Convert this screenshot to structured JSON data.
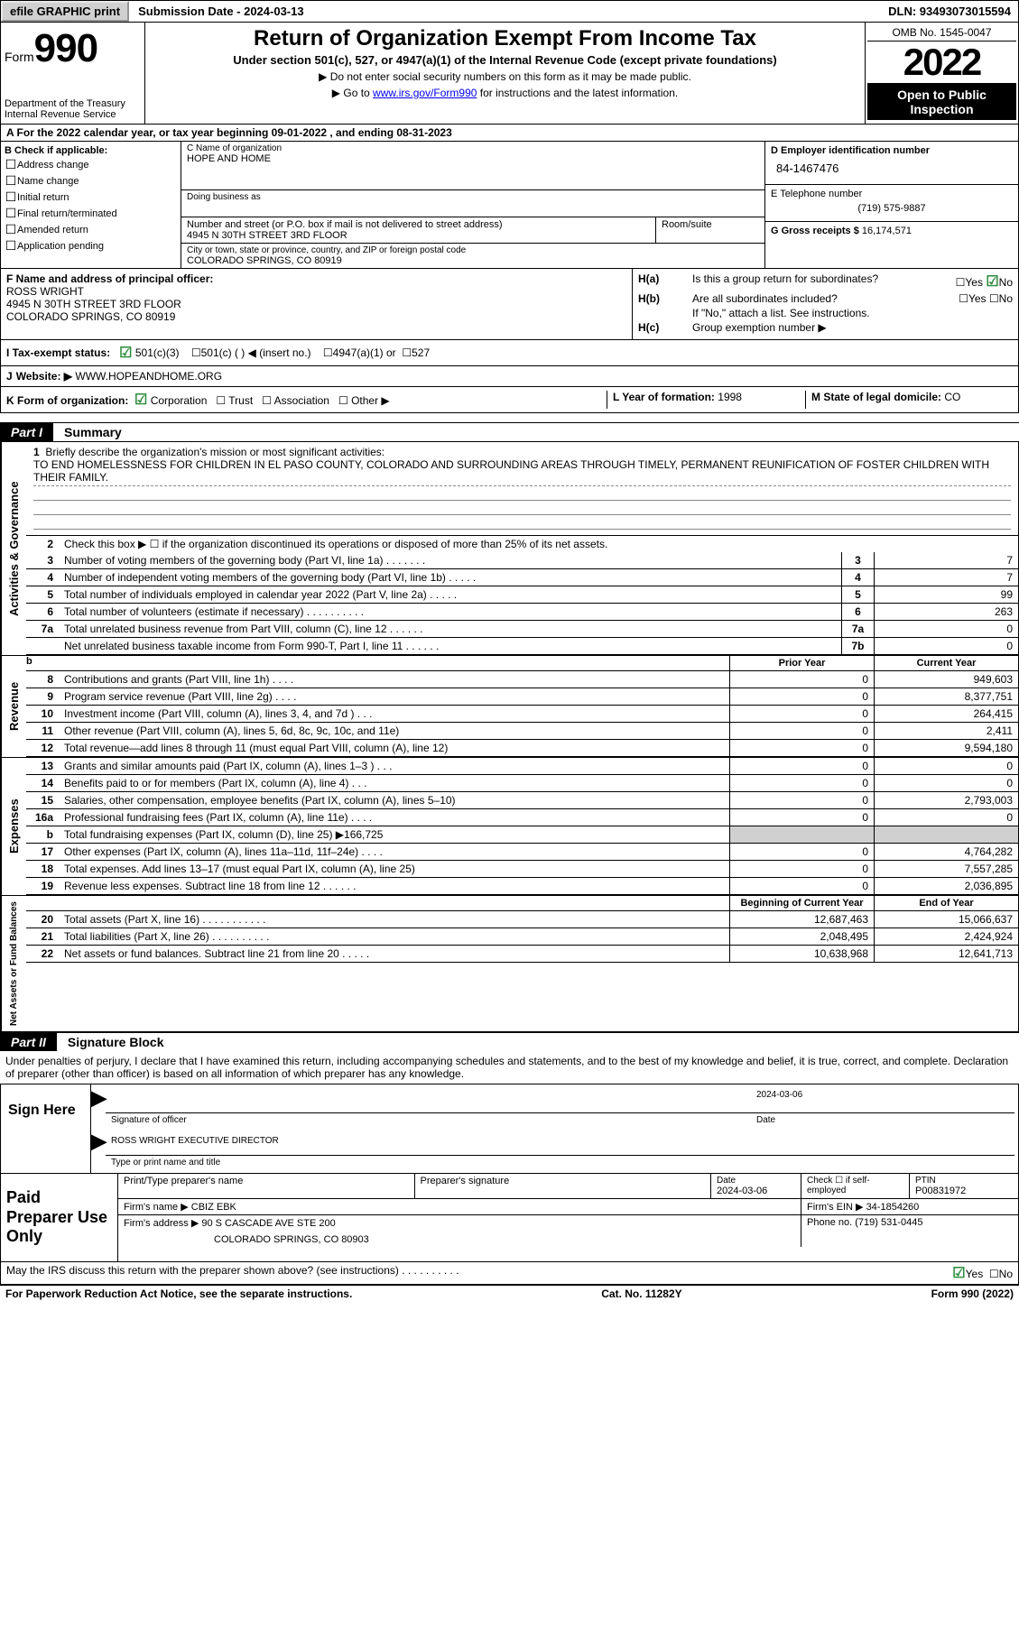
{
  "topbar": {
    "efile": "efile GRAPHIC print",
    "submission": "Submission Date - 2024-03-13",
    "dln": "DLN: 93493073015594"
  },
  "header": {
    "form_word": "Form",
    "form_num": "990",
    "dept": "Department of the Treasury",
    "irs": "Internal Revenue Service",
    "title": "Return of Organization Exempt From Income Tax",
    "subtitle": "Under section 501(c), 527, or 4947(a)(1) of the Internal Revenue Code (except private foundations)",
    "note1": "▶ Do not enter social security numbers on this form as it may be made public.",
    "note2_pre": "▶ Go to ",
    "note2_link": "www.irs.gov/Form990",
    "note2_post": " for instructions and the latest information.",
    "omb": "OMB No. 1545-0047",
    "year": "2022",
    "open": "Open to Public Inspection"
  },
  "period": {
    "text": "A For the 2022 calendar year, or tax year beginning 09-01-2022    , and ending 08-31-2023"
  },
  "colB": {
    "head": "B Check if applicable:",
    "items": [
      "Address change",
      "Name change",
      "Initial return",
      "Final return/terminated",
      "Amended return",
      "Application pending"
    ]
  },
  "colC": {
    "name_lab": "C Name of organization",
    "name": "HOPE AND HOME",
    "dba_lab": "Doing business as",
    "street_lab": "Number and street (or P.O. box if mail is not delivered to street address)",
    "street": "4945 N 30TH STREET 3RD FLOOR",
    "room_lab": "Room/suite",
    "city_lab": "City or town, state or province, country, and ZIP or foreign postal code",
    "city": "COLORADO SPRINGS, CO  80919"
  },
  "colD": {
    "ein_lab": "D Employer identification number",
    "ein": "84-1467476",
    "tel_lab": "E Telephone number",
    "tel": "(719) 575-9887",
    "gross_lab": "G Gross receipts $",
    "gross": "16,174,571"
  },
  "sectionF": {
    "lab": "F Name and address of principal officer:",
    "name": "ROSS WRIGHT",
    "addr1": "4945 N 30TH STREET 3RD FLOOR",
    "addr2": "COLORADO SPRINGS, CO  80919"
  },
  "sectionH": {
    "ha": "Is this a group return for subordinates?",
    "hb": "Are all subordinates included?",
    "hb_note": "If \"No,\" attach a list. See instructions.",
    "hc": "Group exemption number ▶",
    "yes": "Yes",
    "no": "No"
  },
  "statusRow": {
    "i_lab": "I   Tax-exempt status:",
    "s501c3": "501(c)(3)",
    "s501c": "501(c) (  ) ◀ (insert no.)",
    "s4947": "4947(a)(1) or",
    "s527": "527"
  },
  "website": {
    "j": "J",
    "lab": "Website: ▶",
    "url": "WWW.HOPEANDHOME.ORG"
  },
  "formOrg": {
    "k_lab": "K Form of organization:",
    "corp": "Corporation",
    "trust": "Trust",
    "assoc": "Association",
    "other": "Other ▶",
    "l_lab": "L Year of formation:",
    "l_val": "1998",
    "m_lab": "M State of legal domicile:",
    "m_val": "CO"
  },
  "part1_header": {
    "part": "Part I",
    "title": "Summary"
  },
  "part2_header": {
    "part": "Part II",
    "title": "Signature Block"
  },
  "activities": {
    "vlabel": "Activities & Governance",
    "line1_lab": "Briefly describe the organization's mission or most significant activities:",
    "mission": "TO END HOMELESSNESS FOR CHILDREN IN EL PASO COUNTY, COLORADO AND SURROUNDING AREAS THROUGH TIMELY, PERMANENT REUNIFICATION OF FOSTER CHILDREN WITH THEIR FAMILY.",
    "line2": "Check this box ▶ ☐  if the organization discontinued its operations or disposed of more than 25% of its net assets.",
    "lines": [
      {
        "n": "3",
        "txt": "Number of voting members of the governing body (Part VI, line 1a)   .    .    .    .    .    .    .",
        "box": "3",
        "val": "7"
      },
      {
        "n": "4",
        "txt": "Number of independent voting members of the governing body (Part VI, line 1b)  .    .    .    .    .",
        "box": "4",
        "val": "7"
      },
      {
        "n": "5",
        "txt": "Total number of individuals employed in calendar year 2022 (Part V, line 2a)  .    .    .    .    .",
        "box": "5",
        "val": "99"
      },
      {
        "n": "6",
        "txt": "Total number of volunteers (estimate if necessary)   .    .    .    .    .    .    .    .    .    .",
        "box": "6",
        "val": "263"
      },
      {
        "n": "7a",
        "txt": "Total unrelated business revenue from Part VIII, column (C), line 12   .    .    .    .    .    .",
        "box": "7a",
        "val": "0"
      },
      {
        "n": "",
        "txt": "Net unrelated business taxable income from Form 990-T, Part I, line 11  .    .    .    .    .    .",
        "box": "7b",
        "val": "0"
      }
    ]
  },
  "revenue": {
    "vlabel": "Revenue",
    "prior_hdr": "Prior Year",
    "curr_hdr": "Current Year",
    "lines": [
      {
        "n": "8",
        "txt": "Contributions and grants (Part VIII, line 1h)   .    .    .    .",
        "prior": "0",
        "curr": "949,603"
      },
      {
        "n": "9",
        "txt": "Program service revenue (Part VIII, line 2g)   .    .    .    .",
        "prior": "0",
        "curr": "8,377,751"
      },
      {
        "n": "10",
        "txt": "Investment income (Part VIII, column (A), lines 3, 4, and 7d )    .    .    .",
        "prior": "0",
        "curr": "264,415"
      },
      {
        "n": "11",
        "txt": "Other revenue (Part VIII, column (A), lines 5, 6d, 8c, 9c, 10c, and 11e)",
        "prior": "0",
        "curr": "2,411"
      },
      {
        "n": "12",
        "txt": "Total revenue—add lines 8 through 11 (must equal Part VIII, column (A), line 12)",
        "prior": "0",
        "curr": "9,594,180"
      }
    ]
  },
  "expenses": {
    "vlabel": "Expenses",
    "lines": [
      {
        "n": "13",
        "txt": "Grants and similar amounts paid (Part IX, column (A), lines 1–3 )   .    .    .",
        "prior": "0",
        "curr": "0"
      },
      {
        "n": "14",
        "txt": "Benefits paid to or for members (Part IX, column (A), line 4)   .    .    .",
        "prior": "0",
        "curr": "0"
      },
      {
        "n": "15",
        "txt": "Salaries, other compensation, employee benefits (Part IX, column (A), lines 5–10)",
        "prior": "0",
        "curr": "2,793,003"
      },
      {
        "n": "16a",
        "txt": "Professional fundraising fees (Part IX, column (A), line 11e)   .    .    .    .",
        "prior": "0",
        "curr": "0"
      },
      {
        "n": "b",
        "txt": "Total fundraising expenses (Part IX, column (D), line 25) ▶166,725",
        "prior": "grey",
        "curr": "grey"
      },
      {
        "n": "17",
        "txt": "Other expenses (Part IX, column (A), lines 11a–11d, 11f–24e)   .    .    .    .",
        "prior": "0",
        "curr": "4,764,282"
      },
      {
        "n": "18",
        "txt": "Total expenses. Add lines 13–17 (must equal Part IX, column (A), line 25)",
        "prior": "0",
        "curr": "7,557,285"
      },
      {
        "n": "19",
        "txt": "Revenue less expenses. Subtract line 18 from line 12   .    .    .    .    .    .",
        "prior": "0",
        "curr": "2,036,895"
      }
    ]
  },
  "netassets": {
    "vlabel": "Net Assets or Fund Balances",
    "begin_hdr": "Beginning of Current Year",
    "end_hdr": "End of Year",
    "lines": [
      {
        "n": "20",
        "txt": "Total assets (Part X, line 16)  .    .    .    .    .    .    .    .    .    .    .",
        "prior": "12,687,463",
        "curr": "15,066,637"
      },
      {
        "n": "21",
        "txt": "Total liabilities (Part X, line 26)  .    .    .    .    .    .    .    .    .    .",
        "prior": "2,048,495",
        "curr": "2,424,924"
      },
      {
        "n": "22",
        "txt": "Net assets or fund balances. Subtract line 21 from line 20  .    .    .    .    .",
        "prior": "10,638,968",
        "curr": "12,641,713"
      }
    ]
  },
  "sigIntro": "Under penalties of perjury, I declare that I have examined this return, including accompanying schedules and statements, and to the best of my knowledge and belief, it is true, correct, and complete. Declaration of preparer (other than officer) is based on all information of which preparer has any knowledge.",
  "sign": {
    "label": "Sign Here",
    "sig_of_officer": "Signature of officer",
    "date": "2024-03-06",
    "date_lab": "Date",
    "name_title": "ROSS WRIGHT  EXECUTIVE DIRECTOR",
    "type_name": "Type or print name and title"
  },
  "preparer": {
    "label": "Paid Preparer Use Only",
    "pt_name_lab": "Print/Type preparer's name",
    "prep_sig_lab": "Preparer's signature",
    "date_lab": "Date",
    "date": "2024-03-06",
    "self_emp": "Check ☐ if self-employed",
    "ptin_lab": "PTIN",
    "ptin": "P00831972",
    "firm_name_lab": "Firm's name    ▶",
    "firm_name": "CBIZ EBK",
    "firm_ein_lab": "Firm's EIN ▶",
    "firm_ein": "34-1854260",
    "firm_addr_lab": "Firm's address ▶",
    "firm_addr1": "90 S CASCADE AVE STE 200",
    "firm_addr2": "COLORADO SPRINGS, CO  80903",
    "phone_lab": "Phone no.",
    "phone": "(719) 531-0445"
  },
  "discuss": {
    "txt": "May the IRS discuss this return with the preparer shown above? (see instructions)   .    .    .    .    .    .    .    .    .    .",
    "yes": "Yes",
    "no": "No"
  },
  "footer": {
    "paperwork": "For Paperwork Reduction Act Notice, see the separate instructions.",
    "cat": "Cat. No. 11282Y",
    "form": "Form 990 (2022)"
  },
  "colors": {
    "link": "#0000ee",
    "checkgreen": "#2a8a3a",
    "greyfill": "#d0d0d0"
  }
}
